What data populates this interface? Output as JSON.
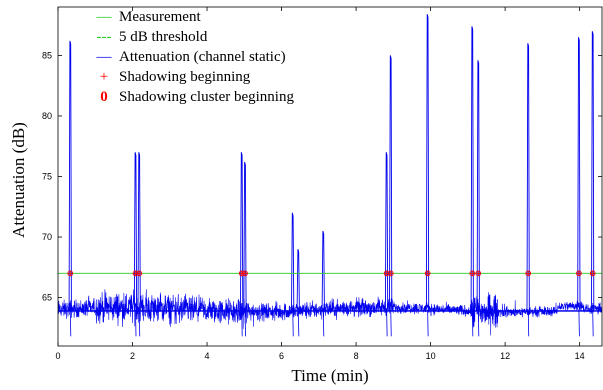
{
  "chart_data": {
    "type": "line",
    "xlabel": "Time (min)",
    "ylabel": "Attenuation (dB)",
    "xlim": [
      0,
      14.6
    ],
    "ylim": [
      61,
      89
    ],
    "xticks": [
      0,
      2,
      4,
      6,
      8,
      10,
      12,
      14
    ],
    "yticks": [
      65,
      70,
      75,
      80,
      85
    ],
    "grid": false,
    "legend_position": "top-left",
    "legend": [
      {
        "marker": "—",
        "label": "Measurement",
        "color": "#22cc22"
      },
      {
        "marker": "---",
        "label": "5 dB threshold",
        "color": "#22cc22"
      },
      {
        "marker": "—",
        "label": "Attenuation (channel static)",
        "color": "#0000ee"
      },
      {
        "marker": "+",
        "label": "Shadowing beginning",
        "color": "#ff0000"
      },
      {
        "marker": "0",
        "label": "Shadowing cluster beginning",
        "color": "#ff0000"
      }
    ],
    "threshold": 67.0,
    "baseline_level": 64.0,
    "spikes": [
      {
        "x": 0.33,
        "y": 86.2
      },
      {
        "x": 2.08,
        "y": 77.0
      },
      {
        "x": 2.18,
        "y": 77.0
      },
      {
        "x": 4.93,
        "y": 77.0
      },
      {
        "x": 5.02,
        "y": 76.2
      },
      {
        "x": 6.3,
        "y": 72.0
      },
      {
        "x": 6.45,
        "y": 69.0
      },
      {
        "x": 7.12,
        "y": 70.5
      },
      {
        "x": 8.82,
        "y": 77.0
      },
      {
        "x": 8.93,
        "y": 85.0
      },
      {
        "x": 9.92,
        "y": 88.4
      },
      {
        "x": 11.12,
        "y": 87.4
      },
      {
        "x": 11.28,
        "y": 84.6
      },
      {
        "x": 12.62,
        "y": 86.0
      },
      {
        "x": 13.98,
        "y": 86.5
      },
      {
        "x": 14.35,
        "y": 87.0
      }
    ],
    "shadowing_beginnings": [
      0.33,
      2.08,
      2.18,
      4.93,
      5.02,
      8.82,
      8.93,
      9.92,
      11.12,
      11.28,
      12.62,
      13.98,
      14.35
    ],
    "colors": {
      "measurement": "#22cc22",
      "threshold": "#22cc22",
      "attenuation": "#0000ee",
      "markers": "#ff0000"
    }
  }
}
